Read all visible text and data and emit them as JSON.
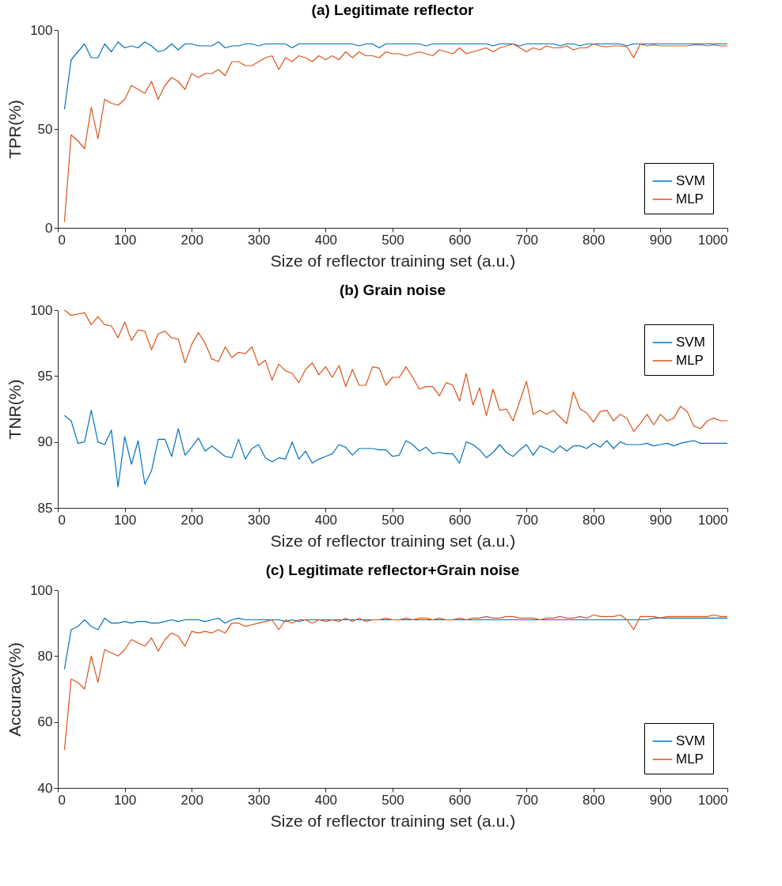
{
  "chart_data": [
    {
      "type": "line",
      "title": "(a) Legitimate reflector",
      "xlabel": "Size of reflector training set (a.u.)",
      "ylabel": "TPR(%)",
      "x": [
        10,
        20,
        30,
        40,
        50,
        60,
        70,
        80,
        90,
        100,
        110,
        120,
        130,
        140,
        150,
        160,
        170,
        180,
        190,
        200,
        210,
        220,
        230,
        240,
        250,
        260,
        270,
        280,
        290,
        300,
        310,
        320,
        330,
        340,
        350,
        360,
        370,
        380,
        390,
        400,
        410,
        420,
        430,
        440,
        450,
        460,
        470,
        480,
        490,
        500,
        510,
        520,
        530,
        540,
        550,
        560,
        570,
        580,
        590,
        600,
        610,
        620,
        630,
        640,
        650,
        660,
        670,
        680,
        690,
        700,
        710,
        720,
        730,
        740,
        750,
        760,
        770,
        780,
        790,
        800,
        810,
        820,
        830,
        840,
        850,
        860,
        870,
        880,
        890,
        900,
        910,
        920,
        930,
        940,
        950,
        960,
        970,
        980,
        990,
        1000
      ],
      "xlim": [
        0,
        1000
      ],
      "xticks": [
        0,
        100,
        200,
        300,
        400,
        500,
        600,
        700,
        800,
        900,
        1000
      ],
      "ylim": [
        0,
        100
      ],
      "yticks": [
        0,
        50,
        100
      ],
      "legend": "bottom right",
      "grid": false,
      "series": [
        {
          "name": "SVM",
          "color": "#0072bd",
          "values": [
            60,
            85,
            89,
            93,
            86,
            86,
            93,
            89,
            94,
            91,
            92,
            91,
            94,
            92,
            89,
            90,
            93,
            90,
            93,
            93,
            92,
            92,
            92,
            94,
            91,
            92,
            92,
            93,
            93,
            92,
            93,
            93,
            93,
            93,
            91,
            93,
            93,
            93,
            93,
            93,
            93,
            93,
            93,
            93,
            92,
            93,
            93,
            91,
            93,
            93,
            93,
            93,
            93,
            93,
            92,
            93,
            93,
            93,
            93,
            93,
            93,
            93,
            93,
            93,
            92,
            93,
            93,
            93,
            92,
            93,
            93,
            93,
            93,
            93,
            92,
            93,
            93,
            92,
            93,
            93,
            93,
            93,
            93,
            93,
            92,
            93,
            93,
            93,
            93,
            93,
            93,
            93,
            93,
            93,
            93,
            93,
            93,
            93,
            93,
            93
          ]
        },
        {
          "name": "MLP",
          "color": "#d95319",
          "values": [
            3,
            47,
            44,
            40,
            61,
            45,
            65,
            63,
            62,
            65,
            72,
            70,
            68,
            74,
            65,
            72,
            76,
            74,
            70,
            78,
            76,
            78,
            78,
            80,
            77,
            84,
            84,
            82,
            82,
            84,
            86,
            87,
            80,
            86,
            84,
            87,
            86,
            84,
            87,
            85,
            87,
            85,
            89,
            86,
            89,
            87,
            87,
            86,
            89,
            88,
            88,
            87,
            88,
            89,
            88,
            87,
            90,
            89,
            88,
            91,
            88,
            89,
            90,
            91,
            89,
            91,
            92,
            93,
            91,
            89,
            91,
            90,
            92,
            91,
            91,
            92,
            90,
            91,
            91,
            93,
            92,
            91.5,
            92,
            92,
            91.5,
            86,
            93,
            92,
            92.5,
            92,
            92,
            92,
            92,
            92,
            92.5,
            92.5,
            92,
            92.5,
            92,
            92
          ]
        }
      ]
    },
    {
      "type": "line",
      "title": "(b) Grain noise",
      "xlabel": "Size of reflector training set (a.u.)",
      "ylabel": "TNR(%)",
      "x": [
        10,
        20,
        30,
        40,
        50,
        60,
        70,
        80,
        90,
        100,
        110,
        120,
        130,
        140,
        150,
        160,
        170,
        180,
        190,
        200,
        210,
        220,
        230,
        240,
        250,
        260,
        270,
        280,
        290,
        300,
        310,
        320,
        330,
        340,
        350,
        360,
        370,
        380,
        390,
        400,
        410,
        420,
        430,
        440,
        450,
        460,
        470,
        480,
        490,
        500,
        510,
        520,
        530,
        540,
        550,
        560,
        570,
        580,
        590,
        600,
        610,
        620,
        630,
        640,
        650,
        660,
        670,
        680,
        690,
        700,
        710,
        720,
        730,
        740,
        750,
        760,
        770,
        780,
        790,
        800,
        810,
        820,
        830,
        840,
        850,
        860,
        870,
        880,
        890,
        900,
        910,
        920,
        930,
        940,
        950,
        960,
        970,
        980,
        990,
        1000
      ],
      "xlim": [
        0,
        1000
      ],
      "xticks": [
        0,
        100,
        200,
        300,
        400,
        500,
        600,
        700,
        800,
        900,
        1000
      ],
      "ylim": [
        85,
        100
      ],
      "yticks": [
        85,
        90,
        95,
        100
      ],
      "legend": "top right",
      "grid": false,
      "series": [
        {
          "name": "SVM",
          "color": "#0072bd",
          "values": [
            92,
            91.6,
            89.9,
            90,
            92.4,
            90,
            89.8,
            90.9,
            86.6,
            90.4,
            88.3,
            90.1,
            86.8,
            87.8,
            90.2,
            90.2,
            88.9,
            91,
            89,
            89.6,
            90.3,
            89.3,
            89.7,
            89.3,
            88.9,
            88.8,
            90.2,
            88.7,
            89.5,
            89.8,
            88.8,
            88.5,
            88.8,
            88.7,
            90,
            88.7,
            89.3,
            88.4,
            88.7,
            88.9,
            89.1,
            89.8,
            89.6,
            89,
            89.5,
            89.5,
            89.5,
            89.4,
            89.4,
            88.9,
            89,
            90.1,
            89.8,
            89.3,
            89.6,
            89.1,
            89.2,
            89.1,
            89.1,
            88.4,
            90,
            89.8,
            89.4,
            88.8,
            89.2,
            89.8,
            89.2,
            88.9,
            89.4,
            89.8,
            89,
            89.7,
            89.5,
            89.2,
            89.7,
            89.3,
            89.7,
            89.7,
            89.5,
            89.9,
            89.6,
            90.1,
            89.5,
            90,
            89.8,
            89.8,
            89.8,
            89.9,
            89.7,
            89.8,
            89.9,
            89.7,
            89.9,
            90,
            90.1,
            89.9,
            89.9,
            89.9,
            89.9,
            89.9
          ]
        },
        {
          "name": "MLP",
          "color": "#d95319",
          "values": [
            100,
            99.6,
            99.7,
            99.8,
            98.9,
            99.5,
            98.9,
            98.8,
            97.9,
            99.1,
            97.7,
            98.5,
            98.4,
            97,
            98.2,
            98.4,
            97.9,
            97.8,
            96,
            97.4,
            98.3,
            97.5,
            96.3,
            96.1,
            97.2,
            96.4,
            96.8,
            96.7,
            97.2,
            95.8,
            96.2,
            94.7,
            95.9,
            95.4,
            95.2,
            94.5,
            95.5,
            96,
            95.1,
            95.7,
            94.9,
            95.8,
            94.2,
            95.5,
            94.3,
            94.3,
            95.7,
            95.6,
            94.3,
            94.9,
            94.9,
            95.7,
            94.9,
            94,
            94.2,
            94.2,
            93.5,
            94.5,
            94.3,
            93.1,
            95.2,
            92.8,
            94.1,
            92,
            94,
            92.4,
            92.5,
            91.6,
            93.1,
            94.6,
            92.1,
            92.4,
            92.1,
            92.4,
            91.9,
            91.4,
            93.8,
            92.5,
            92.2,
            91.5,
            92.3,
            92.4,
            91.6,
            92.1,
            91.8,
            90.8,
            91.4,
            92.1,
            91.3,
            92.1,
            91.6,
            91.8,
            92.7,
            92.3,
            91.2,
            91,
            91.6,
            91.8,
            91.6,
            91.6
          ]
        }
      ]
    },
    {
      "type": "line",
      "title": "(c) Legitimate reflector+Grain noise",
      "xlabel": "Size of reflector training set (a.u.)",
      "ylabel": "Accuracy(%)",
      "x": [
        10,
        20,
        30,
        40,
        50,
        60,
        70,
        80,
        90,
        100,
        110,
        120,
        130,
        140,
        150,
        160,
        170,
        180,
        190,
        200,
        210,
        220,
        230,
        240,
        250,
        260,
        270,
        280,
        290,
        300,
        310,
        320,
        330,
        340,
        350,
        360,
        370,
        380,
        390,
        400,
        410,
        420,
        430,
        440,
        450,
        460,
        470,
        480,
        490,
        500,
        510,
        520,
        530,
        540,
        550,
        560,
        570,
        580,
        590,
        600,
        610,
        620,
        630,
        640,
        650,
        660,
        670,
        680,
        690,
        700,
        710,
        720,
        730,
        740,
        750,
        760,
        770,
        780,
        790,
        800,
        810,
        820,
        830,
        840,
        850,
        860,
        870,
        880,
        890,
        900,
        910,
        920,
        930,
        940,
        950,
        960,
        970,
        980,
        990,
        1000
      ],
      "xlim": [
        0,
        1000
      ],
      "xticks": [
        0,
        100,
        200,
        300,
        400,
        500,
        600,
        700,
        800,
        900,
        1000
      ],
      "ylim": [
        40,
        100
      ],
      "yticks": [
        40,
        60,
        80,
        100
      ],
      "legend": "bottom right",
      "grid": false,
      "series": [
        {
          "name": "SVM",
          "color": "#0072bd",
          "values": [
            76,
            88,
            89,
            91,
            89,
            88,
            91.5,
            90,
            90,
            90.5,
            90,
            90.5,
            90.5,
            90,
            90,
            90.5,
            91,
            90.5,
            91,
            91,
            91,
            90.5,
            91,
            91.5,
            90,
            91,
            91.5,
            91,
            91,
            91,
            91,
            91,
            91,
            90.5,
            91,
            90.5,
            91,
            91,
            91,
            91,
            91,
            91,
            91,
            91,
            91,
            91,
            91,
            91,
            91,
            91,
            91,
            91,
            91,
            91,
            91,
            91,
            91,
            91,
            91,
            91,
            91,
            91,
            91,
            91,
            91,
            91,
            91,
            91,
            91,
            91,
            91,
            91,
            91,
            91,
            91,
            91,
            91,
            91,
            91,
            91,
            91,
            91,
            91,
            91,
            91,
            91,
            91,
            91,
            91.5,
            91.5,
            91.5,
            91.5,
            91.5,
            91.5,
            91.5,
            91.5,
            91.5,
            91.5,
            91.5,
            91.5
          ]
        },
        {
          "name": "MLP",
          "color": "#d95319",
          "values": [
            51.5,
            73,
            72,
            70,
            80,
            72,
            82,
            81,
            80,
            82,
            85,
            84,
            83,
            85.5,
            81.5,
            85,
            87,
            86,
            83,
            87.5,
            87,
            87.5,
            87,
            88,
            87,
            90,
            90,
            89,
            89.5,
            90,
            90.5,
            91,
            88,
            91,
            90,
            91,
            91,
            90,
            91,
            90.5,
            91,
            90.5,
            91.5,
            90.5,
            91.5,
            90.5,
            91,
            91,
            91.5,
            91,
            91,
            91.5,
            91,
            91.5,
            91.5,
            91,
            91.5,
            91,
            91,
            91.5,
            91,
            91.5,
            91.5,
            92,
            91.5,
            91.5,
            92,
            92,
            91.5,
            91.5,
            91.5,
            91,
            91.5,
            91.5,
            92,
            91.5,
            91.5,
            92,
            91.5,
            92.5,
            92,
            92,
            92,
            92.5,
            91,
            88,
            92,
            92,
            92,
            91.5,
            92,
            92,
            92,
            92,
            92,
            92,
            92,
            92.5,
            92,
            92
          ]
        }
      ]
    }
  ]
}
